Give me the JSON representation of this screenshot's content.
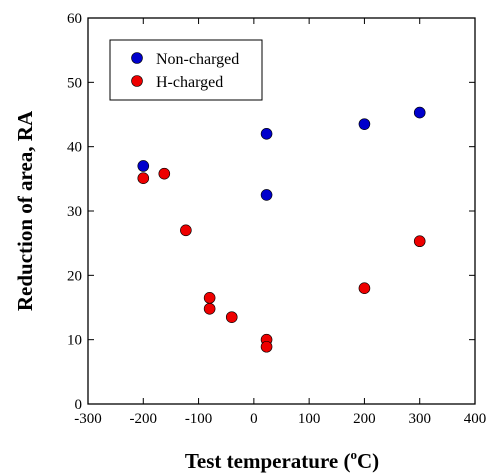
{
  "chart_data": {
    "type": "scatter",
    "xlabel": "Test temperature (",
    "xlabel_sup": "o",
    "xlabel_unit": "C)",
    "ylabel": "Reduction of area, RA",
    "xlim": [
      -300,
      400
    ],
    "ylim": [
      0,
      60
    ],
    "x_ticks": [
      -300,
      -200,
      -100,
      0,
      100,
      200,
      300,
      400
    ],
    "y_ticks": [
      0,
      10,
      20,
      30,
      40,
      50,
      60
    ],
    "grid": false,
    "legend_position": "top-left",
    "series": [
      {
        "name": "Non-charged",
        "color": "#0000cc",
        "points": [
          {
            "x": -200,
            "y": 37.0
          },
          {
            "x": 23,
            "y": 42.0
          },
          {
            "x": 23,
            "y": 32.5
          },
          {
            "x": 200,
            "y": 43.5
          },
          {
            "x": 300,
            "y": 45.3
          }
        ]
      },
      {
        "name": "H-charged",
        "color": "#ee0000",
        "points": [
          {
            "x": -200,
            "y": 35.1
          },
          {
            "x": -162,
            "y": 35.8
          },
          {
            "x": -123,
            "y": 27.0
          },
          {
            "x": -80,
            "y": 16.5
          },
          {
            "x": -80,
            "y": 14.8
          },
          {
            "x": -40,
            "y": 13.5
          },
          {
            "x": 23,
            "y": 10.0
          },
          {
            "x": 23,
            "y": 8.9
          },
          {
            "x": 200,
            "y": 18.0
          },
          {
            "x": 300,
            "y": 25.3
          }
        ]
      }
    ]
  }
}
